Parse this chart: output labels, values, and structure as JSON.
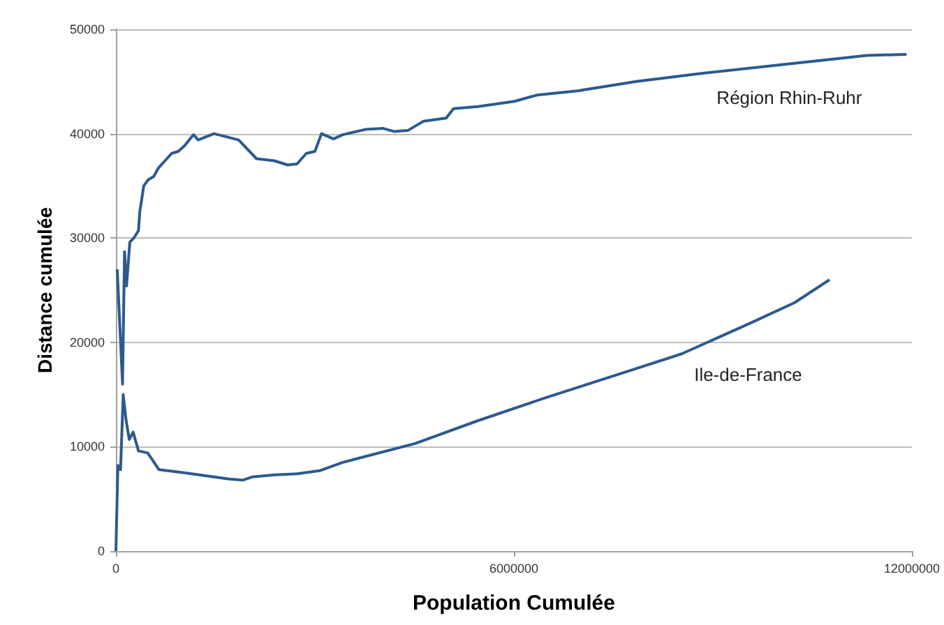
{
  "chart_data": {
    "type": "line",
    "xlabel": "Population Cumulée",
    "ylabel": "Distance cumulée",
    "xlim": [
      0,
      12000000
    ],
    "xticks": [
      0,
      6000000,
      12000000
    ],
    "ylim": [
      0,
      50000
    ],
    "yticks": [
      0,
      10000,
      20000,
      30000,
      40000,
      50000
    ],
    "grid": "y",
    "legend": false,
    "marker": "none",
    "line_style": "solid",
    "series": [
      {
        "name": "Région Rhin-Ruhr",
        "color": "#2c5a8e",
        "x": [
          20000,
          100000,
          130000,
          160000,
          210000,
          270000,
          340000,
          360000,
          420000,
          490000,
          570000,
          640000,
          740000,
          840000,
          940000,
          1030000,
          1170000,
          1240000,
          1480000,
          1850000,
          2120000,
          2390000,
          2590000,
          2730000,
          2870000,
          3000000,
          3100000,
          3280000,
          3420000,
          3760000,
          4030000,
          4200000,
          4400000,
          4640000,
          4980000,
          5090000,
          5460000,
          6010000,
          6350000,
          6960000,
          7850000,
          8870000,
          9890000,
          11320000,
          11920000
        ],
        "values": [
          27000,
          16000,
          28700,
          25400,
          29600,
          30000,
          30700,
          32500,
          35000,
          35600,
          35900,
          36700,
          37400,
          38100,
          38300,
          38800,
          39900,
          39400,
          40000,
          39400,
          37600,
          37400,
          37000,
          37100,
          38100,
          38300,
          40000,
          39500,
          39900,
          40400,
          40500,
          40200,
          40300,
          41200,
          41500,
          42400,
          42600,
          43100,
          43700,
          44100,
          45000,
          45800,
          46500,
          47500,
          47600
        ]
      },
      {
        "name": "Ile-de-France",
        "color": "#2c5a8e",
        "x": [
          0,
          30000,
          70000,
          110000,
          150000,
          200000,
          260000,
          340000,
          480000,
          650000,
          1030000,
          1710000,
          1910000,
          2050000,
          2390000,
          2730000,
          3070000,
          3420000,
          4510000,
          5460000,
          6480000,
          7510000,
          8530000,
          9550000,
          10230000,
          10760000
        ],
        "values": [
          0,
          8200,
          7800,
          15000,
          12700,
          10700,
          11400,
          9600,
          9400,
          7800,
          7500,
          6900,
          6800,
          7100,
          7300,
          7400,
          7700,
          8500,
          10300,
          12500,
          14700,
          16800,
          18900,
          21800,
          23800,
          26000
        ]
      }
    ]
  }
}
